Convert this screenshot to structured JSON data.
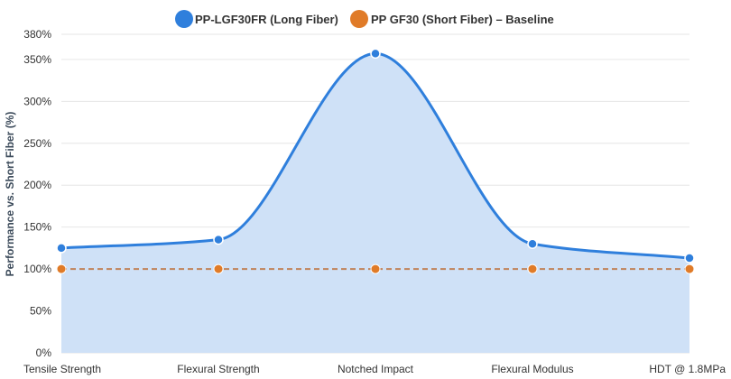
{
  "chart_data": {
    "type": "line",
    "title": "",
    "xlabel": "",
    "ylabel": "Performance vs. Short Fiber (%)",
    "categories": [
      "Tensile Strength",
      "Flexural Strength",
      "Notched Impact",
      "Flexural Modulus",
      "HDT @ 1.8MPa"
    ],
    "ylim": [
      0,
      380
    ],
    "yticks": [
      0,
      50,
      100,
      150,
      200,
      250,
      300,
      350,
      380
    ],
    "ytick_labels": [
      "0%",
      "50%",
      "100%",
      "150%",
      "200%",
      "250%",
      "300%",
      "350%",
      "380%"
    ],
    "grid": true,
    "legend_position": "top-center",
    "series": [
      {
        "name": "PP-LGF30FR (Long Fiber)",
        "values": [
          125,
          135,
          357,
          130,
          113
        ],
        "color": "#2f7fdc",
        "fill": "#cfe1f7",
        "style": "smooth-area"
      },
      {
        "name": "PP GF30 (Short Fiber) – Baseline",
        "values": [
          100,
          100,
          100,
          100,
          100
        ],
        "color": "#e07b28",
        "line_color": "#c0835a",
        "style": "dashed"
      }
    ]
  }
}
